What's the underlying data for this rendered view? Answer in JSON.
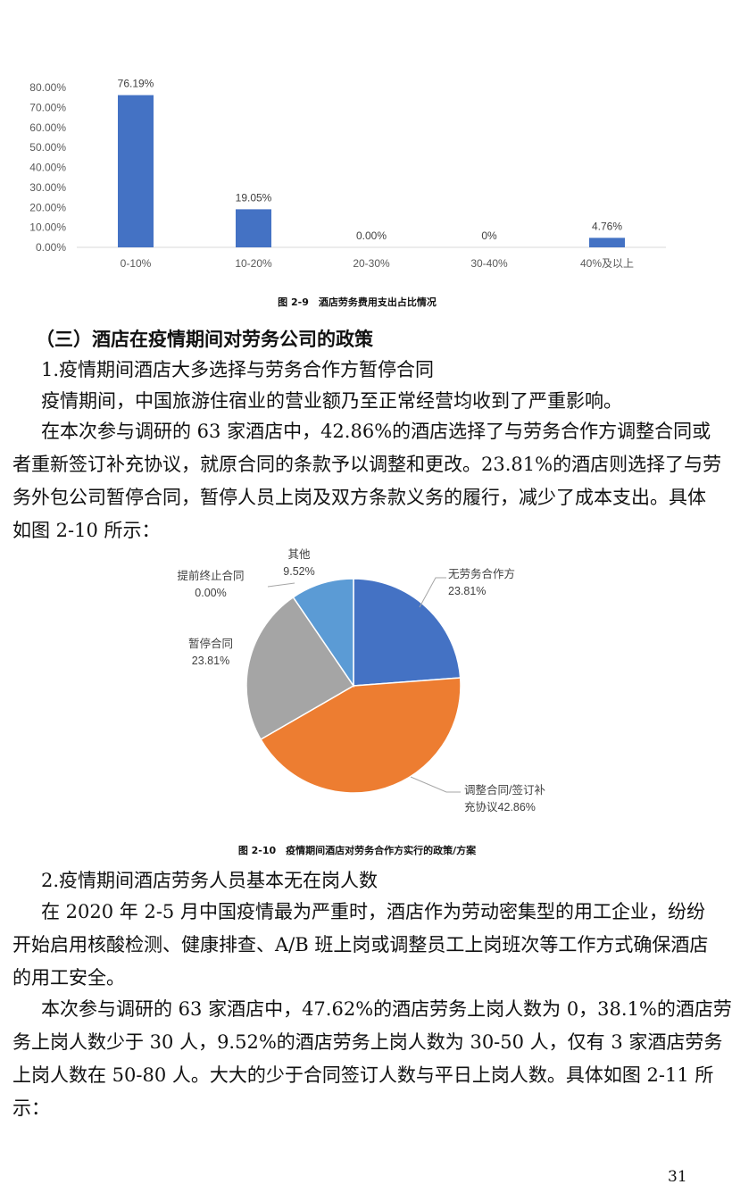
{
  "chart_data": [
    {
      "type": "bar",
      "title": "",
      "categories": [
        "0-10%",
        "10-20%",
        "20-30%",
        "30-40%",
        "40%及以上"
      ],
      "values": [
        76.19,
        19.05,
        0,
        0,
        4.76
      ],
      "data_labels": [
        "76.19%",
        "19.05%",
        "0.00%",
        "0%",
        "4.76%"
      ],
      "yticks": [
        "0.00%",
        "10.00%",
        "20.00%",
        "30.00%",
        "40.00%",
        "50.00%",
        "60.00%",
        "70.00%",
        "80.00%"
      ],
      "ylim": [
        0,
        80
      ],
      "color": "#4472C4",
      "grid": false
    },
    {
      "type": "pie",
      "title": "",
      "slices": [
        {
          "label_lines": [
            "无劳务合作方",
            "23.81%"
          ],
          "value": 23.81,
          "color": "#4472C4"
        },
        {
          "label_lines": [
            "调整合同/签订补",
            "充协议42.86%"
          ],
          "value": 42.86,
          "color": "#ED7D31"
        },
        {
          "label_lines": [
            "暂停合同",
            "23.81%"
          ],
          "value": 23.81,
          "color": "#A5A5A5"
        },
        {
          "label_lines": [
            "提前终止合同",
            "0.00%"
          ],
          "value": 0,
          "color": "#FFC000"
        },
        {
          "label_lines": [
            "其他",
            "9.52%"
          ],
          "value": 9.52,
          "color": "#5B9BD5"
        }
      ]
    }
  ],
  "captions": {
    "fig9": "图 2-9　酒店劳务费用支出占比情况",
    "fig10": "图 2-10　疫情期间酒店对劳务合作方实行的政策/方案"
  },
  "section": {
    "heading": "（三）酒店在疫情期间对劳务公司的政策",
    "sub1": "1.疫情期间酒店大多选择与劳务合作方暂停合同",
    "sub2": "2.疫情期间酒店劳务人员基本无在岗人数"
  },
  "para1": [
    "疫情期间，中国旅游住宿业的营业额乃至正常经营均收到了严重影响。"
  ],
  "para2": [
    "在本次参与调研的 63 家酒店中，42.86%的酒店选择了与劳务合作方调整合同或",
    "者重新签订补充协议，就原合同的条款予以调整和更改。23.81%的酒店则选择了与劳",
    "务外包公司暂停合同，暂停人员上岗及双方条款义务的履行，减少了成本支出。具体",
    "如图 2-10 所示："
  ],
  "para3": [
    "在 2020 年 2-5 月中国疫情最为严重时，酒店作为劳动密集型的用工企业，纷纷",
    "开始启用核酸检测、健康排查、A/B 班上岗或调整员工上岗班次等工作方式确保酒店",
    "的用工安全。"
  ],
  "para4": [
    "本次参与调研的 63 家酒店中，47.62%的酒店劳务上岗人数为 0，38.1%的酒店劳",
    "务上岗人数少于 30 人，9.52%的酒店劳务上岗人数为 30-50 人，仅有 3 家酒店劳务",
    "上岗人数在 50-80 人。大大的少于合同签订人数与平日上岗人数。具体如图 2-11 所",
    "示："
  ],
  "page_number": "31"
}
